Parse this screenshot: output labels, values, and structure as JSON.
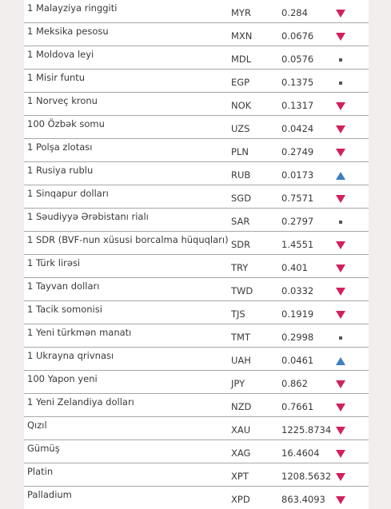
{
  "colors": {
    "down": "#d0215f",
    "up": "#3d7fc4",
    "same": "#555555",
    "side": "#f2eeee",
    "divider": "#a7a7a7"
  },
  "rows": [
    {
      "name": "1 Malayziya ringgiti",
      "code": "MYR",
      "rate": "0.284",
      "trend": "down"
    },
    {
      "name": "1 Meksika pesosu",
      "code": "MXN",
      "rate": "0.0676",
      "trend": "down"
    },
    {
      "name": "1 Moldova leyi",
      "code": "MDL",
      "rate": "0.0576",
      "trend": "same"
    },
    {
      "name": "1 Misir funtu",
      "code": "EGP",
      "rate": "0.1375",
      "trend": "same"
    },
    {
      "name": "1 Norveç kronu",
      "code": "NOK",
      "rate": "0.1317",
      "trend": "down"
    },
    {
      "name": "100 Özbək somu",
      "code": "UZS",
      "rate": "0.0424",
      "trend": "down"
    },
    {
      "name": "1 Polşa zlotası",
      "code": "PLN",
      "rate": "0.2749",
      "trend": "down"
    },
    {
      "name": "1 Rusiya rublu",
      "code": "RUB",
      "rate": "0.0173",
      "trend": "up"
    },
    {
      "name": "1 Sinqapur dolları",
      "code": "SGD",
      "rate": "0.7571",
      "trend": "down"
    },
    {
      "name": "1 Səudiyyə Ərəbistanı rialı",
      "code": "SAR",
      "rate": "0.2797",
      "trend": "same"
    },
    {
      "name": "1 SDR (BVF-nun xüsusi borcalma hüquqları)",
      "code": "SDR",
      "rate": "1.4551",
      "trend": "down"
    },
    {
      "name": "1 Türk lirəsi",
      "code": "TRY",
      "rate": "0.401",
      "trend": "down"
    },
    {
      "name": "1 Tayvan dolları",
      "code": "TWD",
      "rate": "0.0332",
      "trend": "down"
    },
    {
      "name": "1 Tacik somonisi",
      "code": "TJS",
      "rate": "0.1919",
      "trend": "down"
    },
    {
      "name": "1 Yeni türkmən manatı",
      "code": "TMT",
      "rate": "0.2998",
      "trend": "same"
    },
    {
      "name": "1 Ukrayna qrivnası",
      "code": "UAH",
      "rate": "0.0461",
      "trend": "up"
    },
    {
      "name": "100 Yapon yeni",
      "code": "JPY",
      "rate": "0.862",
      "trend": "down"
    },
    {
      "name": "1 Yeni Zelandiya dolları",
      "code": "NZD",
      "rate": "0.7661",
      "trend": "down"
    },
    {
      "name": "Qızıl",
      "code": "XAU",
      "rate": "1225.8734",
      "trend": "down"
    },
    {
      "name": "Gümüş",
      "code": "XAG",
      "rate": "16.4604",
      "trend": "down"
    },
    {
      "name": "Platin",
      "code": "XPT",
      "rate": "1208.5632",
      "trend": "down"
    },
    {
      "name": "Palladium",
      "code": "XPD",
      "rate": "863.4093",
      "trend": "down"
    }
  ]
}
